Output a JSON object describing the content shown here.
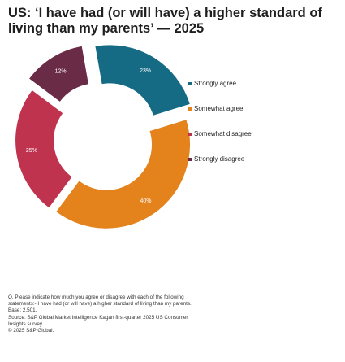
{
  "title": "US: ‘I have had (or will have) a higher standard of living than my parents’ — 2025",
  "chart_data": {
    "type": "pie",
    "categories": [
      "Strongly agree",
      "Somewhat agree",
      "Somewhat disagree",
      "Strongly disagree"
    ],
    "values": [
      23,
      40,
      25,
      12
    ],
    "labels": [
      "23%",
      "40%",
      "25%",
      "12%"
    ],
    "colors": [
      "#156B84",
      "#E4821C",
      "#C0334F",
      "#6A2B47"
    ],
    "donut": true,
    "legend_position": "right"
  },
  "footnotes": {
    "question": "Q. Please indicate how much you agree or disagree with each of the following",
    "statement": "statements:- I have had (or will have) a higher standard of living than my parents.",
    "base": "Base: 2,501.",
    "source_line1": "Source: S&P Global Market Intelligence Kagan first-quarter 2025 US Consumer",
    "source_line2": "Insights survey.",
    "copyright": "© 2025 S&P Global."
  }
}
